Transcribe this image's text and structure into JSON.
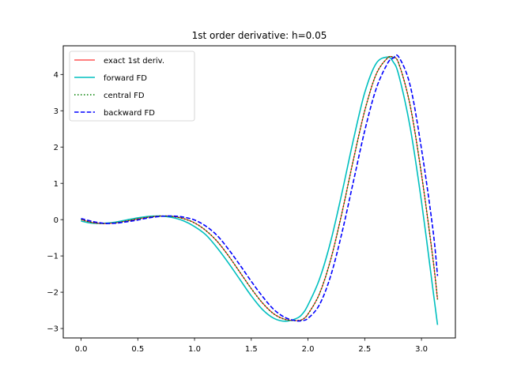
{
  "chart_data": {
    "type": "line",
    "title": "1st order derivative: h=0.05",
    "xlabel": "",
    "ylabel": "",
    "xlim": [
      -0.157,
      3.299
    ],
    "ylim": [
      -3.26,
      4.79
    ],
    "xticks": [
      0.0,
      0.5,
      1.0,
      1.5,
      2.0,
      2.5,
      3.0
    ],
    "xtick_labels": [
      "0.0",
      "0.5",
      "1.0",
      "1.5",
      "2.0",
      "2.5",
      "3.0"
    ],
    "yticks": [
      -3,
      -2,
      -1,
      0,
      1,
      2,
      3,
      4
    ],
    "ytick_labels": [
      "−3",
      "−2",
      "−1",
      "0",
      "1",
      "2",
      "3",
      "4"
    ],
    "grid": false,
    "legend_position": "top-left",
    "series": [
      {
        "name": "exact 1st deriv.",
        "color": "#ff0000",
        "style": "solid",
        "x": [
          0.0,
          0.1,
          0.2,
          0.3,
          0.4,
          0.5,
          0.6,
          0.7,
          0.8,
          0.9,
          1.0,
          1.1,
          1.2,
          1.3,
          1.4,
          1.5,
          1.6,
          1.7,
          1.8,
          1.9,
          1.95,
          2.0,
          2.1,
          2.2,
          2.3,
          2.4,
          2.5,
          2.6,
          2.7,
          2.75,
          2.8,
          2.9,
          3.0,
          3.1,
          3.1416
        ],
        "y": [
          0.0,
          -0.08,
          -0.11,
          -0.09,
          -0.04,
          0.02,
          0.07,
          0.1,
          0.09,
          0.03,
          -0.09,
          -0.3,
          -0.6,
          -1.0,
          -1.45,
          -1.9,
          -2.3,
          -2.6,
          -2.75,
          -2.78,
          -2.75,
          -2.6,
          -2.05,
          -1.1,
          0.2,
          1.65,
          3.0,
          4.0,
          4.45,
          4.47,
          4.3,
          3.15,
          1.25,
          -1.05,
          -2.2
        ]
      },
      {
        "name": "forward FD",
        "color": "#00bfbf",
        "style": "solid",
        "x": [
          0.0,
          0.1,
          0.2,
          0.3,
          0.4,
          0.5,
          0.6,
          0.7,
          0.8,
          0.9,
          1.0,
          1.1,
          1.2,
          1.3,
          1.4,
          1.5,
          1.6,
          1.7,
          1.8,
          1.9,
          1.95,
          2.0,
          2.1,
          2.2,
          2.3,
          2.4,
          2.5,
          2.6,
          2.7,
          2.75,
          2.8,
          2.9,
          3.0,
          3.1,
          3.1416
        ],
        "y": [
          -0.04,
          -0.1,
          -0.1,
          -0.07,
          -0.01,
          0.05,
          0.09,
          0.1,
          0.06,
          -0.03,
          -0.19,
          -0.42,
          -0.78,
          -1.2,
          -1.65,
          -2.1,
          -2.48,
          -2.72,
          -2.8,
          -2.72,
          -2.6,
          -2.35,
          -1.65,
          -0.6,
          0.75,
          2.2,
          3.5,
          4.3,
          4.48,
          4.35,
          3.98,
          2.55,
          0.5,
          -1.9,
          -2.9
        ]
      },
      {
        "name": "central FD",
        "color": "#008000",
        "style": "dotted",
        "x": [
          0.0,
          0.1,
          0.2,
          0.3,
          0.4,
          0.5,
          0.6,
          0.7,
          0.8,
          0.9,
          1.0,
          1.1,
          1.2,
          1.3,
          1.4,
          1.5,
          1.6,
          1.7,
          1.8,
          1.9,
          1.95,
          2.0,
          2.1,
          2.2,
          2.3,
          2.4,
          2.5,
          2.6,
          2.7,
          2.75,
          2.8,
          2.9,
          3.0,
          3.1,
          3.1416
        ],
        "y": [
          0.0,
          -0.08,
          -0.11,
          -0.09,
          -0.04,
          0.02,
          0.07,
          0.1,
          0.09,
          0.03,
          -0.09,
          -0.3,
          -0.6,
          -1.0,
          -1.45,
          -1.9,
          -2.3,
          -2.6,
          -2.75,
          -2.78,
          -2.75,
          -2.6,
          -2.05,
          -1.1,
          0.2,
          1.65,
          3.0,
          4.0,
          4.45,
          4.47,
          4.3,
          3.15,
          1.25,
          -1.05,
          -2.2
        ]
      },
      {
        "name": "backward FD",
        "color": "#0000ff",
        "style": "dashed",
        "x": [
          0.0,
          0.1,
          0.2,
          0.3,
          0.4,
          0.5,
          0.6,
          0.7,
          0.8,
          0.9,
          1.0,
          1.1,
          1.2,
          1.3,
          1.4,
          1.5,
          1.6,
          1.7,
          1.8,
          1.9,
          1.95,
          2.0,
          2.1,
          2.2,
          2.3,
          2.4,
          2.5,
          2.6,
          2.7,
          2.75,
          2.8,
          2.9,
          3.0,
          3.1,
          3.1416
        ],
        "y": [
          0.03,
          -0.05,
          -0.1,
          -0.1,
          -0.06,
          -0.01,
          0.05,
          0.09,
          0.1,
          0.07,
          -0.01,
          -0.18,
          -0.44,
          -0.82,
          -1.25,
          -1.7,
          -2.12,
          -2.48,
          -2.7,
          -2.79,
          -2.78,
          -2.72,
          -2.35,
          -1.55,
          -0.35,
          1.05,
          2.45,
          3.6,
          4.3,
          4.45,
          4.48,
          3.7,
          1.95,
          -0.25,
          -1.55
        ]
      }
    ]
  }
}
